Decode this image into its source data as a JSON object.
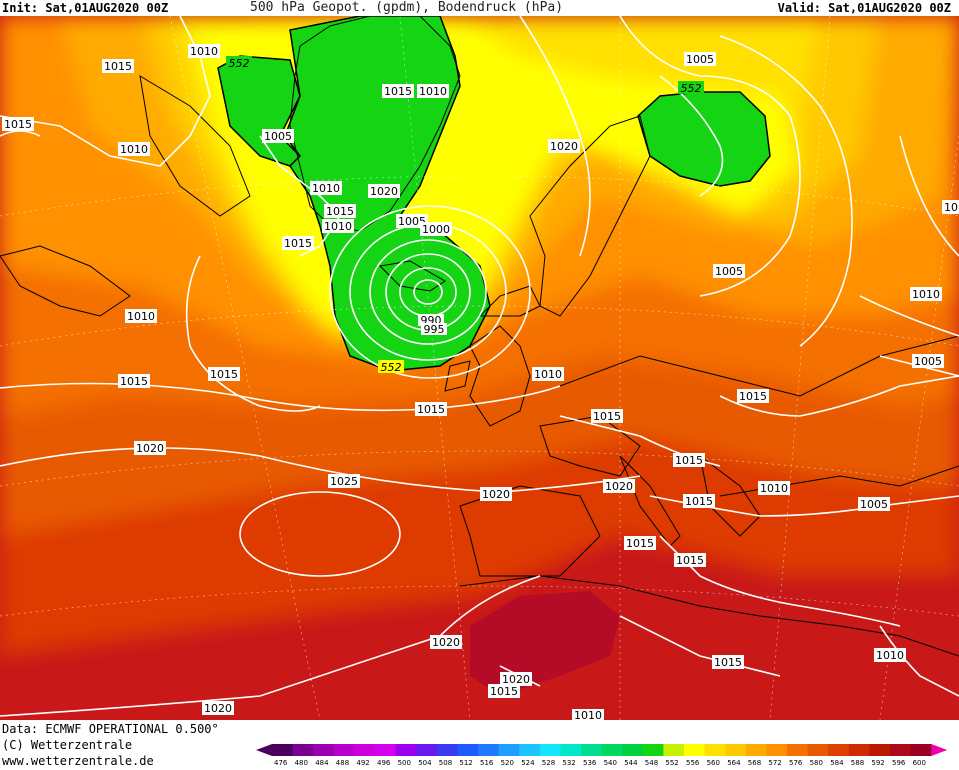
{
  "header": {
    "init": "Init: Sat,01AUG2020 00Z",
    "title": "500 hPa Geopot. (gpdm), Bodendruck (hPa)",
    "valid": "Valid: Sat,01AUG2020 00Z"
  },
  "footer": {
    "data_source": "Data: ECMWF OPERATIONAL 0.500°",
    "copyright": "(C) Wetterzentrale",
    "url": "www.wetterzentrale.de"
  },
  "legend": {
    "levels": [
      476,
      480,
      484,
      488,
      492,
      496,
      500,
      504,
      508,
      512,
      516,
      520,
      524,
      528,
      532,
      536,
      540,
      544,
      548,
      552,
      556,
      560,
      564,
      568,
      572,
      576,
      580,
      584,
      588,
      592,
      596,
      600
    ],
    "colors": [
      "#4b0060",
      "#7a0090",
      "#9a00b0",
      "#b800cc",
      "#cc00dd",
      "#d400ee",
      "#9b00ee",
      "#6a1aee",
      "#3b3bee",
      "#1f5aff",
      "#1f7aff",
      "#1e9eff",
      "#1ec4ff",
      "#14e4ff",
      "#00e8c8",
      "#00dd90",
      "#00d860",
      "#00d040",
      "#14d414",
      "#c8f000",
      "#ffff00",
      "#ffe000",
      "#ffc800",
      "#ffaa00",
      "#ff9000",
      "#f47000",
      "#e85a00",
      "#dd4000",
      "#cc2c00",
      "#bb1800",
      "#aa0a1a",
      "#990022"
    ],
    "min_arrow_color": "#4b0060",
    "max_arrow_color": "#ee00aa"
  },
  "pressure_labels": [
    {
      "text": "1010",
      "id": "p1"
    },
    {
      "text": "1015",
      "id": "p2"
    },
    {
      "text": "1015",
      "id": "p3"
    },
    {
      "text": "1010",
      "id": "p4"
    },
    {
      "text": "1005",
      "id": "p5"
    },
    {
      "text": "1010",
      "id": "p6"
    },
    {
      "text": "1015",
      "id": "p7"
    },
    {
      "text": "1010",
      "id": "p8"
    },
    {
      "text": "1015",
      "id": "p9"
    },
    {
      "text": "1010",
      "id": "p10"
    },
    {
      "text": "1015",
      "id": "p11"
    },
    {
      "text": "1020",
      "id": "p12"
    },
    {
      "text": "1005",
      "id": "p13"
    },
    {
      "text": "1000",
      "id": "p14"
    },
    {
      "text": "1015",
      "id": "p15"
    },
    {
      "text": "1010",
      "id": "p16"
    },
    {
      "text": "990",
      "id": "p17"
    },
    {
      "text": "995",
      "id": "p18"
    },
    {
      "text": "1010",
      "id": "p19"
    },
    {
      "text": "1015",
      "id": "p20"
    },
    {
      "text": "1015",
      "id": "p21"
    },
    {
      "text": "1015",
      "id": "p22"
    },
    {
      "text": "1020",
      "id": "p23"
    },
    {
      "text": "1025",
      "id": "p24"
    },
    {
      "text": "1020",
      "id": "p25"
    },
    {
      "text": "1020",
      "id": "p26"
    },
    {
      "text": "1020",
      "id": "p27"
    },
    {
      "text": "1020",
      "id": "p28"
    },
    {
      "text": "1020",
      "id": "p29"
    },
    {
      "text": "1015",
      "id": "p30"
    },
    {
      "text": "1010",
      "id": "p31"
    },
    {
      "text": "1020",
      "id": "p32"
    },
    {
      "text": "1005",
      "id": "p33"
    },
    {
      "text": "1005",
      "id": "p34"
    },
    {
      "text": "1010",
      "id": "p35"
    },
    {
      "text": "1005",
      "id": "p36"
    },
    {
      "text": "1015",
      "id": "p37"
    },
    {
      "text": "1015",
      "id": "p38"
    },
    {
      "text": "1010",
      "id": "p39"
    },
    {
      "text": "1015",
      "id": "p40"
    },
    {
      "text": "1005",
      "id": "p41"
    },
    {
      "text": "1015",
      "id": "p42"
    },
    {
      "text": "1015",
      "id": "p43"
    },
    {
      "text": "1015",
      "id": "p44"
    },
    {
      "text": "1010",
      "id": "p45"
    },
    {
      "text": "1015",
      "id": "p46"
    },
    {
      "text": "1015",
      "id": "p47"
    },
    {
      "text": "1020",
      "id": "p48"
    },
    {
      "text": "1010",
      "id": "p49"
    },
    {
      "text": "10",
      "id": "p50"
    }
  ],
  "geopot_labels": [
    {
      "text": "552",
      "id": "g1"
    },
    {
      "text": "552",
      "id": "g2"
    },
    {
      "text": "552",
      "id": "g3"
    }
  ]
}
